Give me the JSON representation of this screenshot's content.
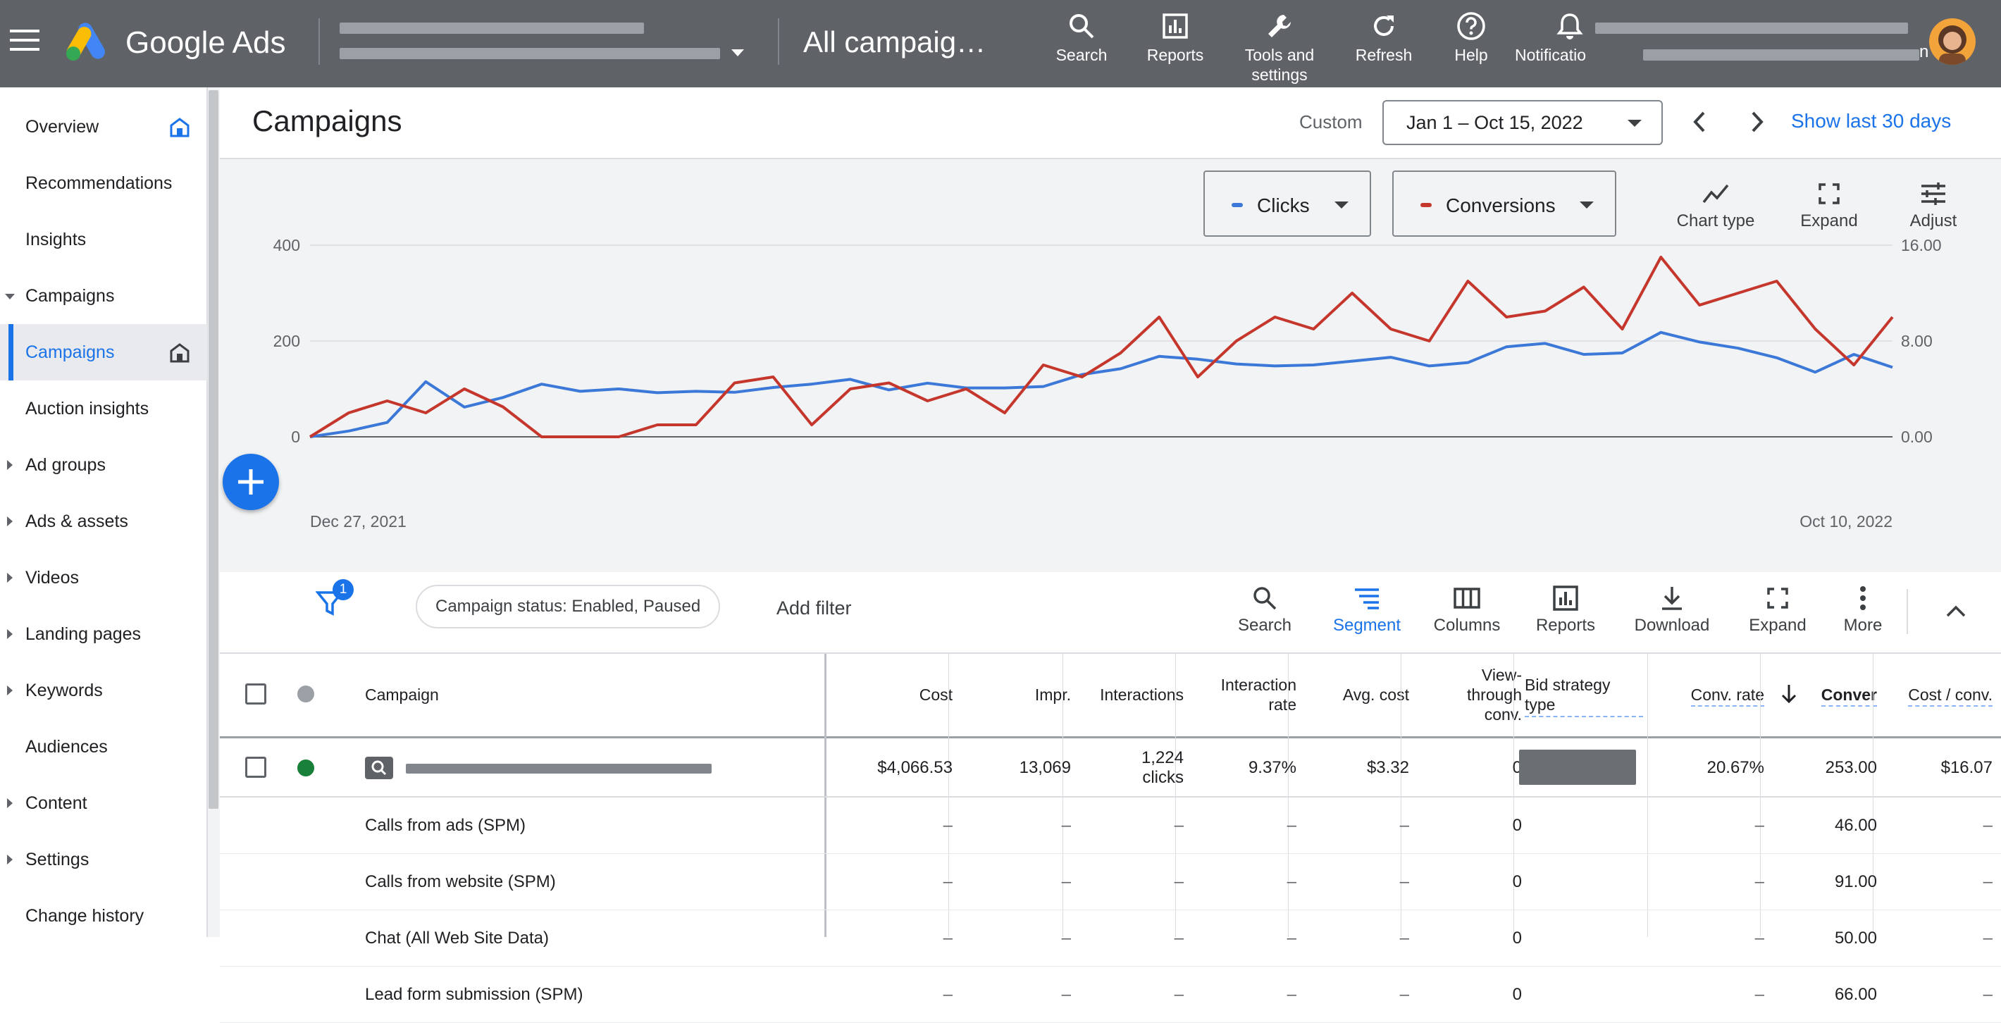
{
  "topbar": {
    "product": "Google Ads",
    "page_title": "All campaig…",
    "buttons": [
      {
        "label": "Search"
      },
      {
        "label": "Reports"
      },
      {
        "label": "Tools and\nsettings"
      },
      {
        "label": "Refresh"
      },
      {
        "label": "Help"
      },
      {
        "label": "Notificatio"
      }
    ],
    "account_suffix": "n"
  },
  "sidebar": {
    "items": [
      {
        "label": "Overview"
      },
      {
        "label": "Recommendations"
      },
      {
        "label": "Insights"
      },
      {
        "label": "Campaigns"
      },
      {
        "label": "Campaigns"
      },
      {
        "label": "Auction insights"
      },
      {
        "label": "Ad groups"
      },
      {
        "label": "Ads & assets"
      },
      {
        "label": "Videos"
      },
      {
        "label": "Landing pages"
      },
      {
        "label": "Keywords"
      },
      {
        "label": "Audiences"
      },
      {
        "label": "Content"
      },
      {
        "label": "Settings"
      },
      {
        "label": "Change history"
      }
    ]
  },
  "header": {
    "title": "Campaigns",
    "date_mode": "Custom",
    "date_range": "Jan 1 – Oct 15, 2022",
    "show_last": "Show last 30 days"
  },
  "chart_controls": {
    "metric1": "Clicks",
    "metric2": "Conversions",
    "chart_type": "Chart type",
    "expand": "Expand",
    "adjust": "Adjust"
  },
  "colors": {
    "clicks": "#3c78d8",
    "conversions": "#c5372c",
    "accent": "#1a73e8"
  },
  "chart_data": {
    "type": "line",
    "x_start_label": "Dec 27, 2021",
    "x_end_label": "Oct 10, 2022",
    "left_axis": {
      "ticks": [
        "0",
        "200",
        "400"
      ],
      "ylim": [
        0,
        400
      ]
    },
    "right_axis": {
      "ticks": [
        "0.00",
        "8.00",
        "16.00"
      ],
      "ylim": [
        0,
        16
      ]
    },
    "series": [
      {
        "name": "Clicks",
        "axis": "left",
        "color": "#3c78d8",
        "values": [
          0,
          12,
          30,
          115,
          62,
          82,
          110,
          95,
          100,
          92,
          95,
          93,
          103,
          110,
          120,
          98,
          112,
          102,
          102,
          105,
          130,
          142,
          168,
          162,
          152,
          148,
          150,
          158,
          166,
          148,
          155,
          188,
          195,
          172,
          175,
          218,
          198,
          185,
          165,
          135,
          172,
          145
        ]
      },
      {
        "name": "Conversions",
        "axis": "right",
        "color": "#c5372c",
        "values": [
          0,
          2.0,
          3.0,
          2.0,
          4.0,
          2.5,
          0,
          0,
          0,
          1.0,
          1.0,
          4.5,
          5.0,
          1.0,
          4.0,
          4.5,
          3.0,
          4.0,
          2.0,
          6.0,
          5.0,
          7.0,
          10.0,
          5.0,
          8.0,
          10.0,
          9.0,
          12.0,
          9.0,
          8.0,
          13.0,
          10.0,
          10.5,
          12.5,
          9.0,
          15.0,
          11.0,
          12.0,
          13.0,
          9.0,
          6.0,
          10.0
        ]
      }
    ]
  },
  "filter_bar": {
    "filter_count": "1",
    "status_chip": "Campaign status: Enabled, Paused",
    "add_filter": "Add filter",
    "tools": [
      {
        "label": "Search"
      },
      {
        "label": "Segment"
      },
      {
        "label": "Columns"
      },
      {
        "label": "Reports"
      },
      {
        "label": "Download"
      },
      {
        "label": "Expand"
      },
      {
        "label": "More"
      }
    ]
  },
  "table": {
    "columns": {
      "campaign": "Campaign",
      "cost": "Cost",
      "impr": "Impr.",
      "interactions": "Interactions",
      "interaction_rate": "Interaction\nrate",
      "avg_cost": "Avg. cost",
      "view_through": "View-\nthrough\nconv.",
      "bid_strategy": "Bid strategy\ntype",
      "conv_rate": "Conv. rate",
      "conversions": "Conver",
      "cost_per_conv": "Cost / conv."
    },
    "main_row": {
      "cost": "$4,066.53",
      "impr": "13,069",
      "interactions": "1,224\nclicks",
      "interaction_rate": "9.37%",
      "avg_cost": "$3.32",
      "view_through": "0",
      "conv_rate": "20.67%",
      "conversions": "253.00",
      "cost_per_conv": "$16.07"
    },
    "sub_rows": [
      {
        "name": "Calls from ads (SPM)",
        "dash": "–",
        "view_through": "0",
        "conversions": "46.00"
      },
      {
        "name": "Calls from website (SPM)",
        "dash": "–",
        "view_through": "0",
        "conversions": "91.00"
      },
      {
        "name": "Chat (All Web Site Data)",
        "dash": "–",
        "view_through": "0",
        "conversions": "50.00"
      },
      {
        "name": "Lead form submission (SPM)",
        "dash": "–",
        "view_through": "0",
        "conversions": "66.00"
      }
    ]
  }
}
